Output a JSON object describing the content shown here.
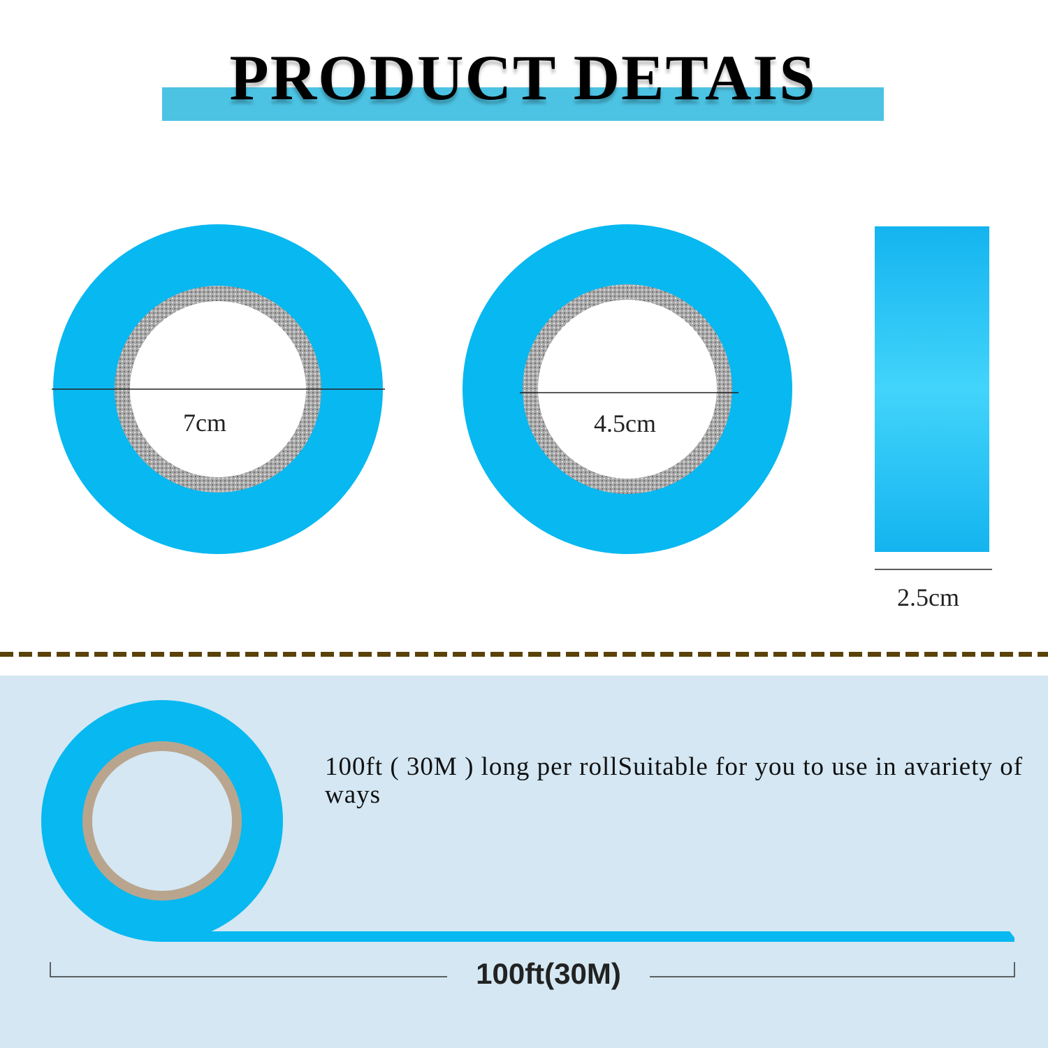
{
  "header": {
    "title": "PRODUCT DETAIS"
  },
  "colors": {
    "tape_blue": "#08b8f0",
    "title_band": "#4cc3e3",
    "divider": "#5a4208",
    "panel_bg": "#d4e7f3"
  },
  "dimensions": {
    "outer_diameter": "7cm",
    "inner_diameter": "4.5cm",
    "width": "2.5cm"
  },
  "bottom": {
    "description": "100ft ( 30M ) long per rollSuitable for you to use in avariety of ways",
    "length_label": "100ft(30M)"
  }
}
